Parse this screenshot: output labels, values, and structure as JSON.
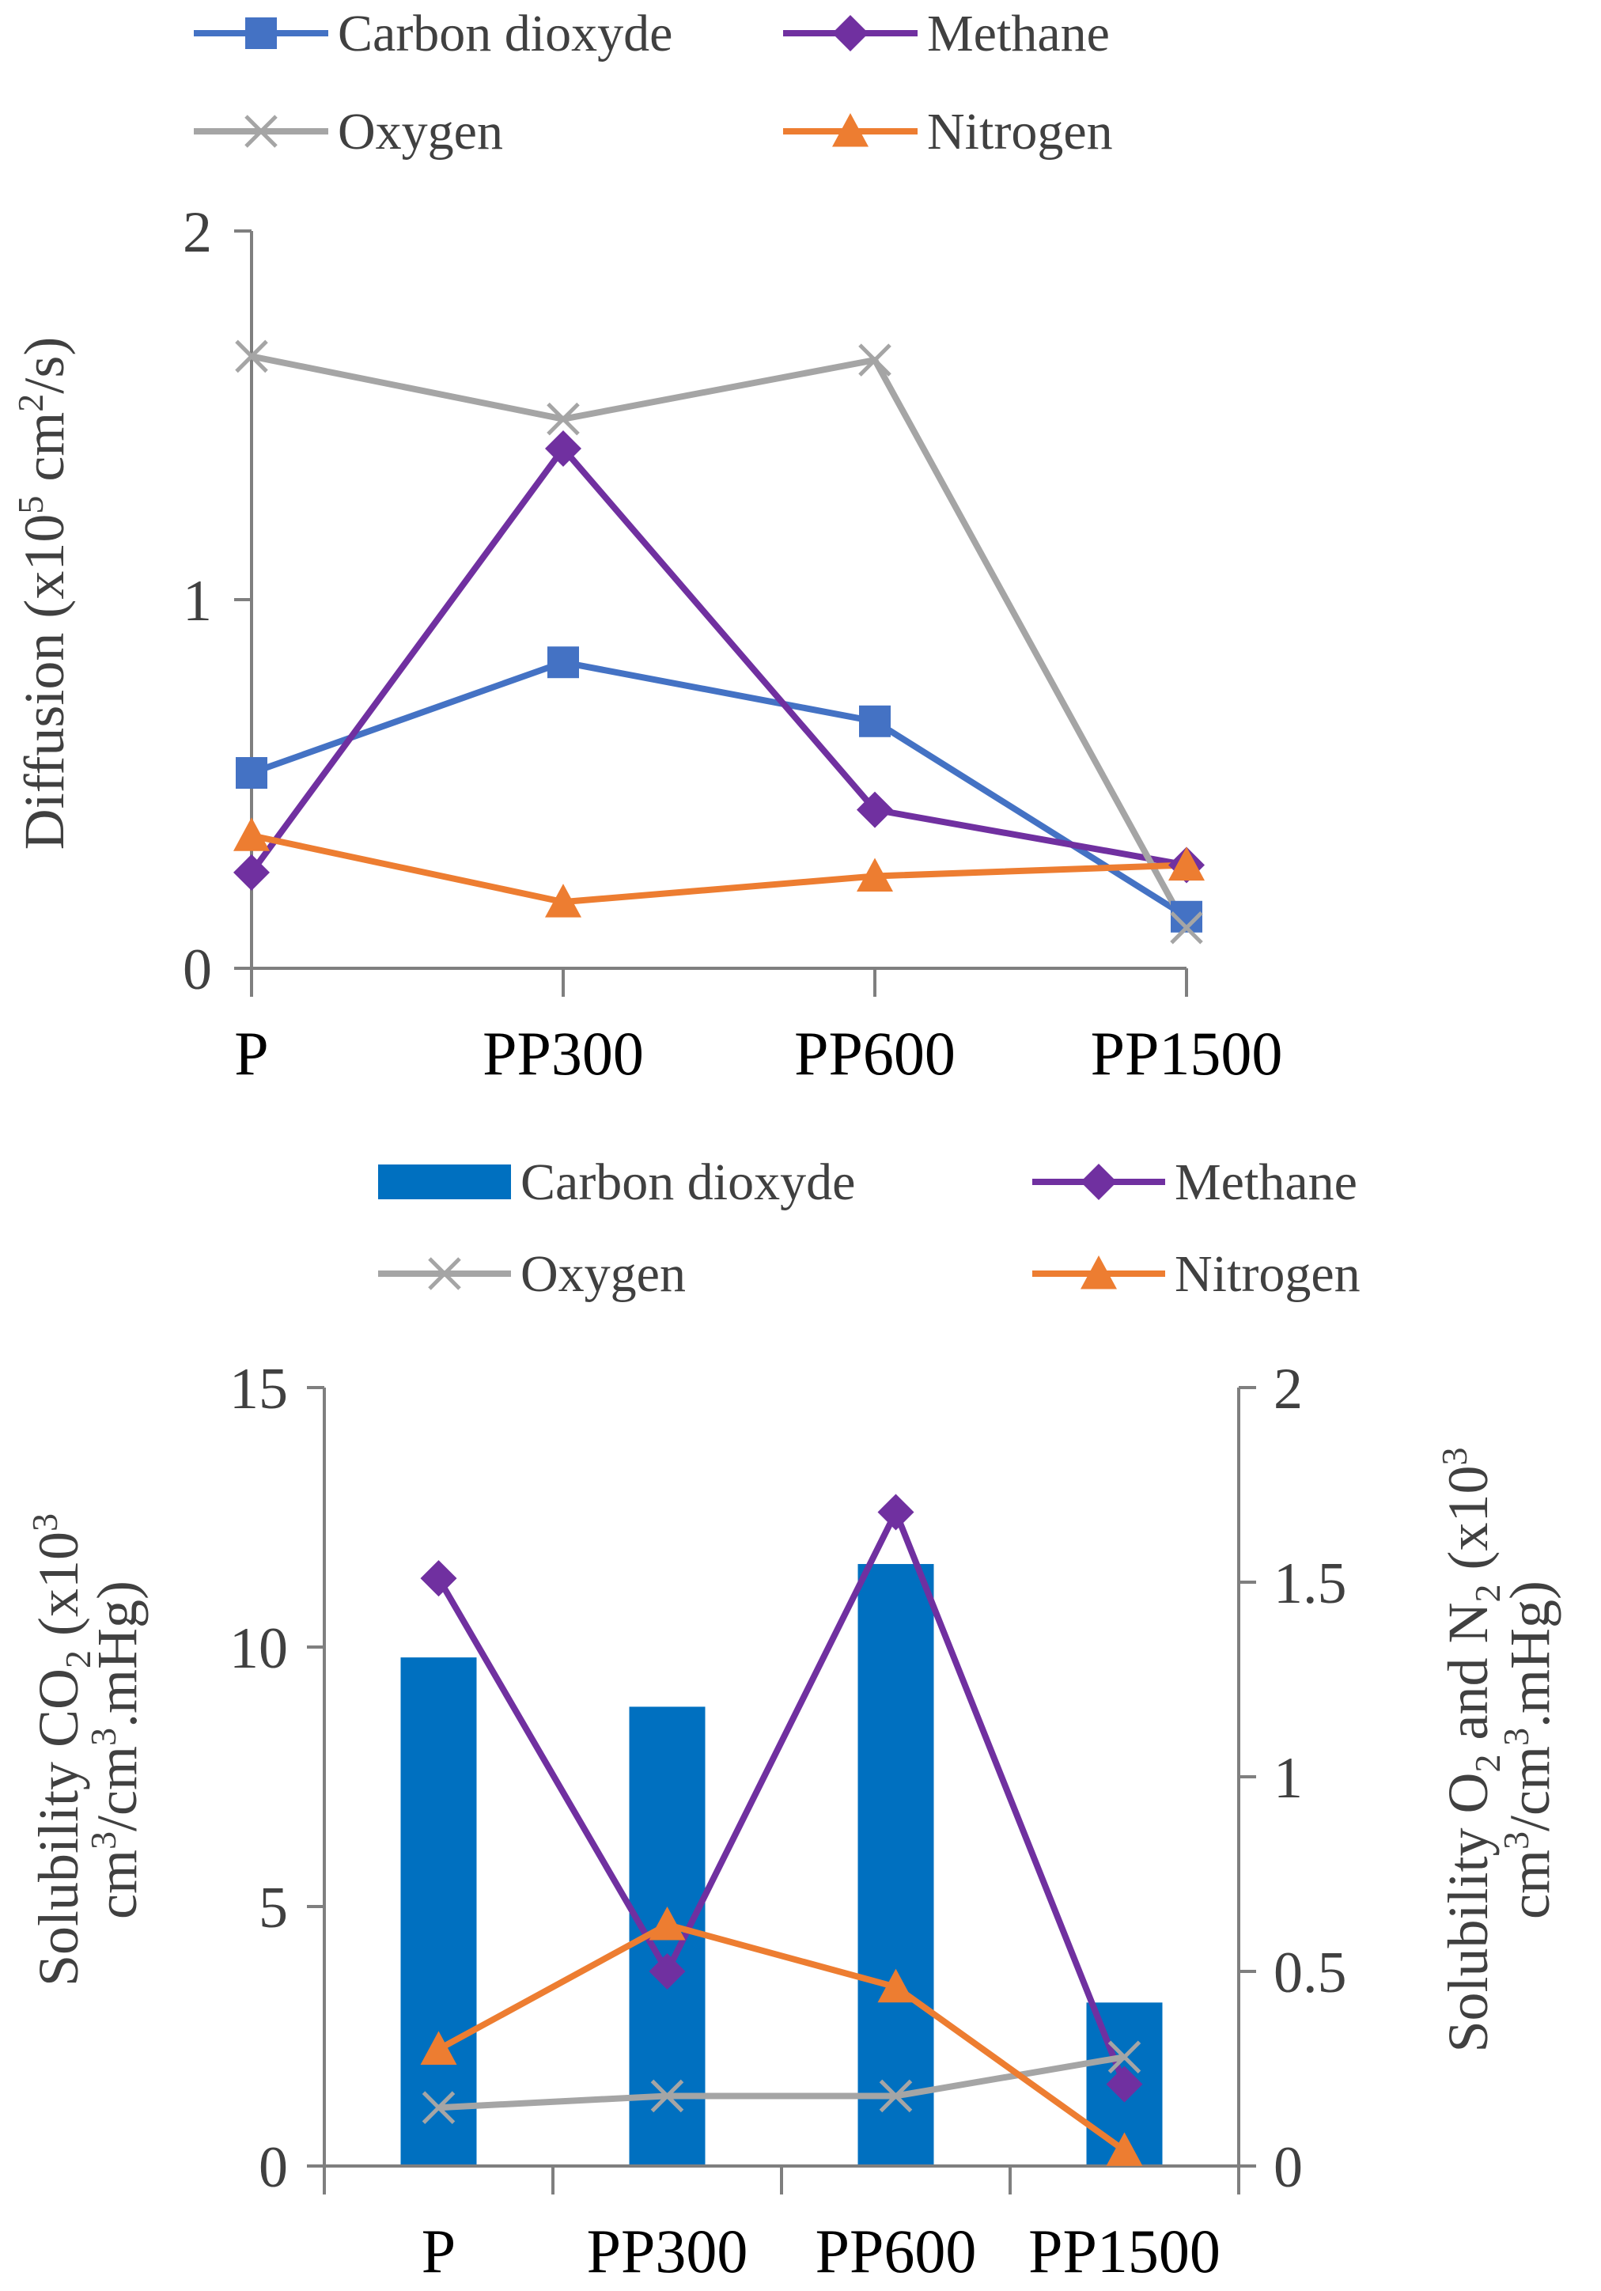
{
  "chart_data": [
    {
      "type": "line",
      "title": "",
      "xlabel": "",
      "ylabel": "Diffusion (x10^5 cm2/s)",
      "ylabel_parts": {
        "main": "Diffusion  (x10",
        "sup": "5",
        "mid": " cm",
        "sup2": "2",
        "end": "/s)"
      },
      "categories": [
        "P",
        "PP300",
        "PP600",
        "PP1500"
      ],
      "ylim": [
        0,
        2
      ],
      "yticks": [
        "0",
        "1",
        "2"
      ],
      "legend_position": "top",
      "series": [
        {
          "name": "Carbon dioxyde",
          "marker": "square",
          "color": "#4472C4",
          "values": [
            0.53,
            0.83,
            0.67,
            0.14
          ]
        },
        {
          "name": "Methane",
          "marker": "diamond",
          "color": "#7030A0",
          "values": [
            0.26,
            1.41,
            0.43,
            0.28
          ]
        },
        {
          "name": "Oxygen",
          "marker": "x",
          "color": "#A5A5A5",
          "values": [
            1.66,
            1.49,
            1.65,
            0.11
          ]
        },
        {
          "name": "Nitrogen",
          "marker": "triangle",
          "color": "#ED7D31",
          "values": [
            0.36,
            0.18,
            0.25,
            0.28
          ]
        }
      ]
    },
    {
      "type": "bar",
      "title": "",
      "xlabel": "",
      "categories": [
        "P",
        "PP300",
        "PP600",
        "PP1500"
      ],
      "legend_position": "top",
      "left_axis": {
        "label_line1": {
          "main": "Solubility  CO",
          "sub": "2",
          "end": " (x10",
          "sup": "3"
        },
        "label_line2": {
          "main": "cm",
          "sup": "3",
          "mid": "/cm",
          "sup2": "3",
          "end": ".mHg)"
        },
        "ylim": [
          0,
          15
        ],
        "yticks": [
          "0",
          "5",
          "10",
          "15"
        ]
      },
      "right_axis": {
        "label_line1": {
          "main": "Solubility  O",
          "sub": "2",
          "mid": " and N",
          "sub2": "2",
          "end": " (x10",
          "sup": "3"
        },
        "label_line2": {
          "main": "cm",
          "sup": "3",
          "mid": "/cm",
          "sup2": "3",
          "end": ".mHg)"
        },
        "ylim": [
          0,
          2
        ],
        "yticks": [
          "0",
          "0.5",
          "1",
          "1.5",
          "2"
        ]
      },
      "series": [
        {
          "name": "Carbon dioxyde",
          "kind": "bar",
          "axis": "left",
          "color": "#0070C0",
          "values": [
            9.8,
            8.85,
            11.6,
            3.15
          ]
        },
        {
          "name": "Methane",
          "kind": "line",
          "marker": "diamond",
          "axis": "right",
          "color": "#7030A0",
          "values": [
            1.51,
            0.5,
            1.68,
            0.21
          ]
        },
        {
          "name": "Oxygen",
          "kind": "line",
          "marker": "x",
          "axis": "right",
          "color": "#A5A5A5",
          "values": [
            0.15,
            0.18,
            0.18,
            0.28
          ]
        },
        {
          "name": "Nitrogen",
          "kind": "line",
          "marker": "triangle",
          "axis": "right",
          "color": "#ED7D31",
          "values": [
            0.3,
            0.62,
            0.46,
            0.04
          ]
        }
      ]
    }
  ]
}
